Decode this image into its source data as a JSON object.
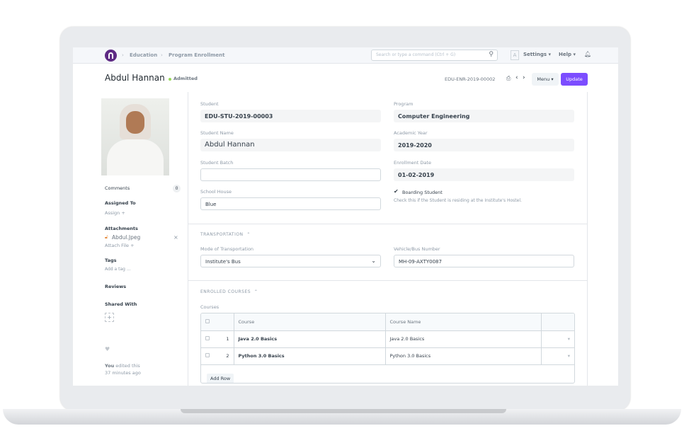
{
  "navbar": {
    "breadcrumbs": [
      "Education",
      "Program Enrollment"
    ],
    "search_placeholder": "Search or type a command (Ctrl + G)",
    "avatar_letter": "A",
    "settings": "Settings",
    "help": "Help"
  },
  "header": {
    "title": "Abdul Hannan",
    "status": "Admitted",
    "status_color": "#98d85b",
    "doc_id": "EDU-ENR-2019-00002",
    "menu": "Menu",
    "update": "Update",
    "accent": "#7c4dff"
  },
  "sidebar": {
    "comments": "Comments",
    "comments_count": "0",
    "assigned_to": "Assigned To",
    "assign": "Assign +",
    "attachments": "Attachments",
    "attachment_file": "Abdul.Jpeg",
    "attach_file": "Attach File +",
    "tags": "Tags",
    "add_tag": "Add a tag ...",
    "reviews": "Reviews",
    "shared_with": "Shared With",
    "edited_by": "You",
    "edited_text": "edited this",
    "edited_time": "37 minutes ago"
  },
  "form": {
    "student_label": "Student",
    "student": "EDU-STU-2019-00003",
    "student_name_label": "Student Name",
    "student_name": "Abdul Hannan",
    "student_batch_label": "Student Batch",
    "student_batch": "",
    "school_house_label": "School House",
    "school_house": "Blue",
    "program_label": "Program",
    "program": "Computer Engineering",
    "academic_year_label": "Academic Year",
    "academic_year": "2019-2020",
    "enrollment_date_label": "Enrollment Date",
    "enrollment_date": "01-02-2019",
    "boarding_label": "Boarding Student",
    "boarding_checked": true,
    "boarding_help": "Check this if the Student is residing at the Institute's Hostel.",
    "transport_section": "TRANSPORTATION",
    "mode_label": "Mode of Transportation",
    "mode": "Institute's Bus",
    "vehicle_label": "Vehicle/Bus Number",
    "vehicle": "MH-09-AXTY0087",
    "courses_section": "ENROLLED COURSES",
    "courses_label": "Courses",
    "columns": [
      "Course",
      "Course Name"
    ],
    "rows": [
      {
        "no": "1",
        "course": "Java 2.0 Basics",
        "name": "Java 2.0 Basics"
      },
      {
        "no": "2",
        "course": "Python 3.0 Basics",
        "name": "Python 3.0 Basics"
      }
    ],
    "add_row": "Add Row"
  }
}
